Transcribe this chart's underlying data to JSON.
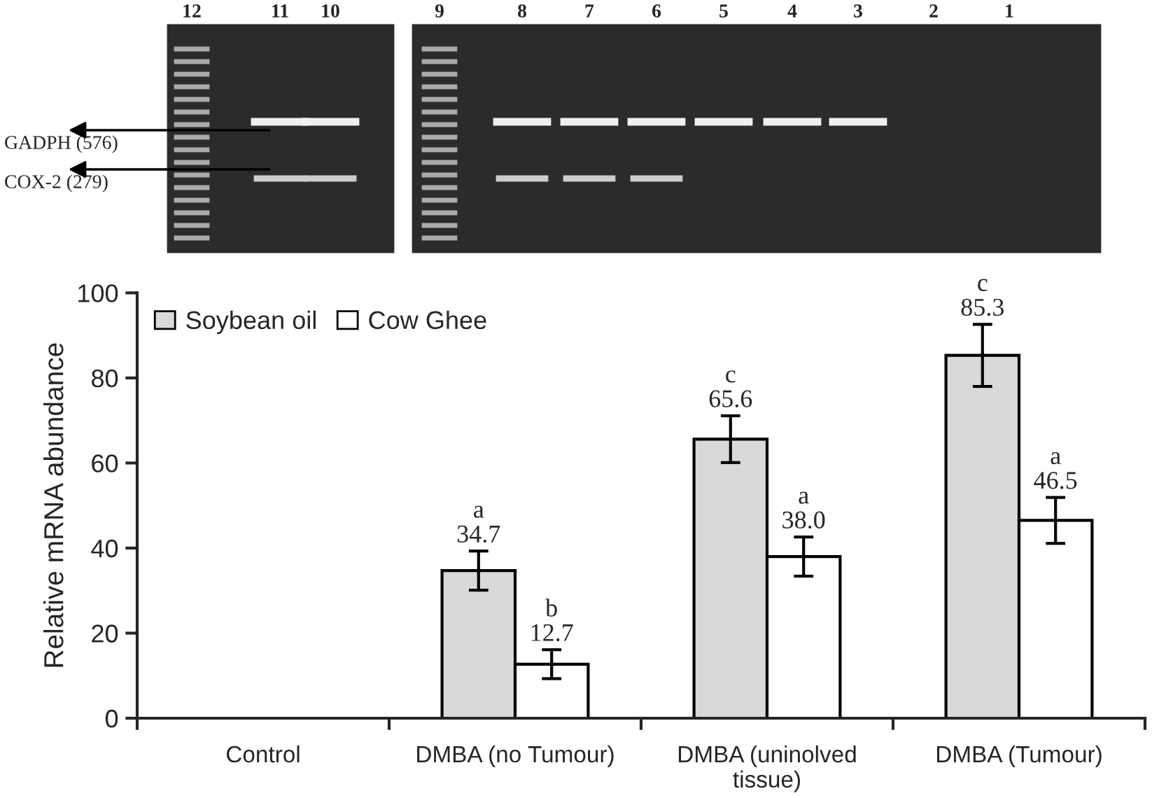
{
  "chart_data": {
    "type": "bar",
    "ylabel": "Relative mRNA abundance",
    "categories": [
      "Control",
      "DMBA (no Tumour)",
      "DMBA (uninolved\ntissue)",
      "DMBA (Tumour)"
    ],
    "series": [
      {
        "name": "Soybean oil",
        "color": "#d9d9d9",
        "values": [
          null,
          34.7,
          65.6,
          85.3
        ],
        "errors": [
          null,
          4.6,
          5.5,
          7.3
        ],
        "value_labels": [
          null,
          "a\n34.7",
          "c\n65.6",
          "c\n85.3"
        ]
      },
      {
        "name": "Cow Ghee",
        "color": "#ffffff",
        "values": [
          null,
          12.7,
          38.0,
          46.5
        ],
        "errors": [
          null,
          3.4,
          4.6,
          5.4
        ],
        "value_labels": [
          null,
          "b\n12.7",
          "a\n38.0",
          "a\n46.5"
        ]
      }
    ],
    "ylim": [
      0,
      100
    ],
    "yticks": [
      0,
      20,
      40,
      60,
      80,
      100
    ],
    "legend": "top left",
    "grid": false,
    "annotations": [
      "12",
      "11",
      "10",
      "9",
      "8",
      "7",
      "6",
      "5",
      "4",
      "3",
      "2",
      "1",
      "GADPH (576)",
      "COX-2 (279)"
    ]
  }
}
